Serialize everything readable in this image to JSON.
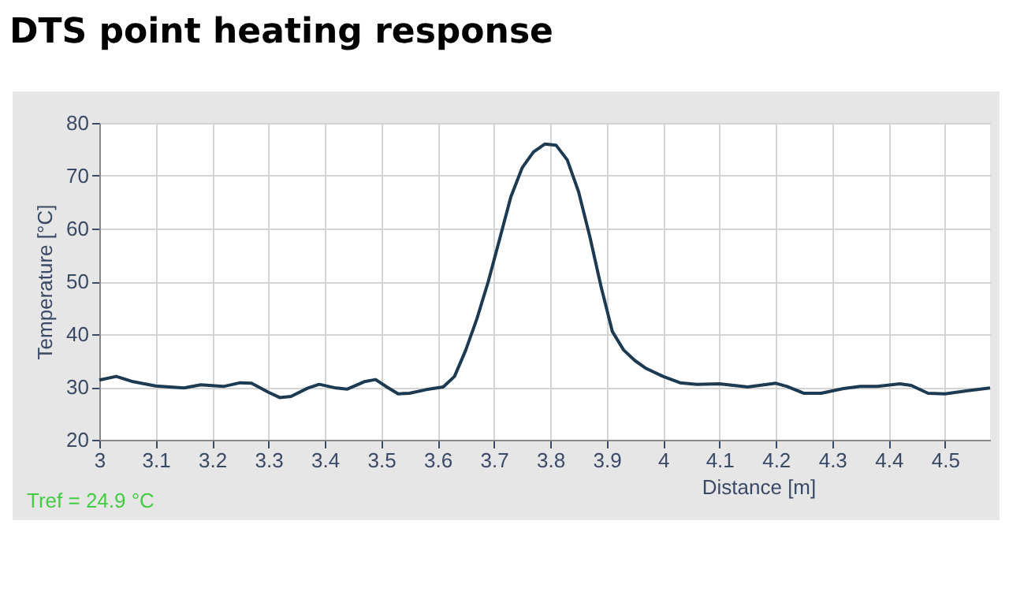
{
  "chart_data": {
    "type": "line",
    "title": "DTS point heating response",
    "xlabel": "Distance [m]",
    "ylabel": "Temperature [°C]",
    "annotations": [
      "Tref = 24.9 °C"
    ],
    "x": [
      3.0,
      3.03,
      3.06,
      3.1,
      3.15,
      3.18,
      3.22,
      3.25,
      3.27,
      3.3,
      3.32,
      3.34,
      3.37,
      3.39,
      3.42,
      3.44,
      3.47,
      3.49,
      3.51,
      3.53,
      3.55,
      3.58,
      3.61,
      3.63,
      3.65,
      3.67,
      3.69,
      3.71,
      3.73,
      3.75,
      3.77,
      3.79,
      3.81,
      3.83,
      3.85,
      3.87,
      3.89,
      3.91,
      3.93,
      3.95,
      3.97,
      4.0,
      4.03,
      4.06,
      4.1,
      4.15,
      4.2,
      4.22,
      4.25,
      4.28,
      4.32,
      4.35,
      4.38,
      4.42,
      4.44,
      4.47,
      4.5,
      4.54,
      4.58
    ],
    "series": [
      {
        "color": "#1c3a52",
        "values": [
          31.3,
          32,
          31,
          30.2,
          29.8,
          30.4,
          30.1,
          30.8,
          30.7,
          29,
          28,
          28.2,
          29.8,
          30.5,
          29.8,
          29.6,
          31,
          31.4,
          30,
          28.7,
          28.8,
          29.5,
          30,
          32,
          37,
          43,
          50,
          58,
          66,
          71.5,
          74.5,
          76,
          75.8,
          73,
          67,
          58.5,
          49,
          40.5,
          37,
          35,
          33.5,
          32,
          30.8,
          30.5,
          30.6,
          30,
          30.7,
          30.1,
          28.8,
          28.8,
          29.7,
          30.1,
          30.1,
          30.6,
          30.3,
          28.8,
          28.7,
          29.3,
          29.8
        ]
      }
    ],
    "xlim": [
      3,
      4.58
    ],
    "xticks": [
      3,
      3.1,
      3.2,
      3.3,
      3.4,
      3.5,
      3.6,
      3.7,
      3.8,
      3.9,
      4,
      4.1,
      4.2,
      4.3,
      4.4,
      4.5
    ],
    "ylim": [
      20,
      80
    ],
    "yticks": [
      20,
      30,
      40,
      50,
      60,
      70,
      80
    ],
    "grid": true,
    "legend": false,
    "marker": "none",
    "line_style": "solid"
  }
}
